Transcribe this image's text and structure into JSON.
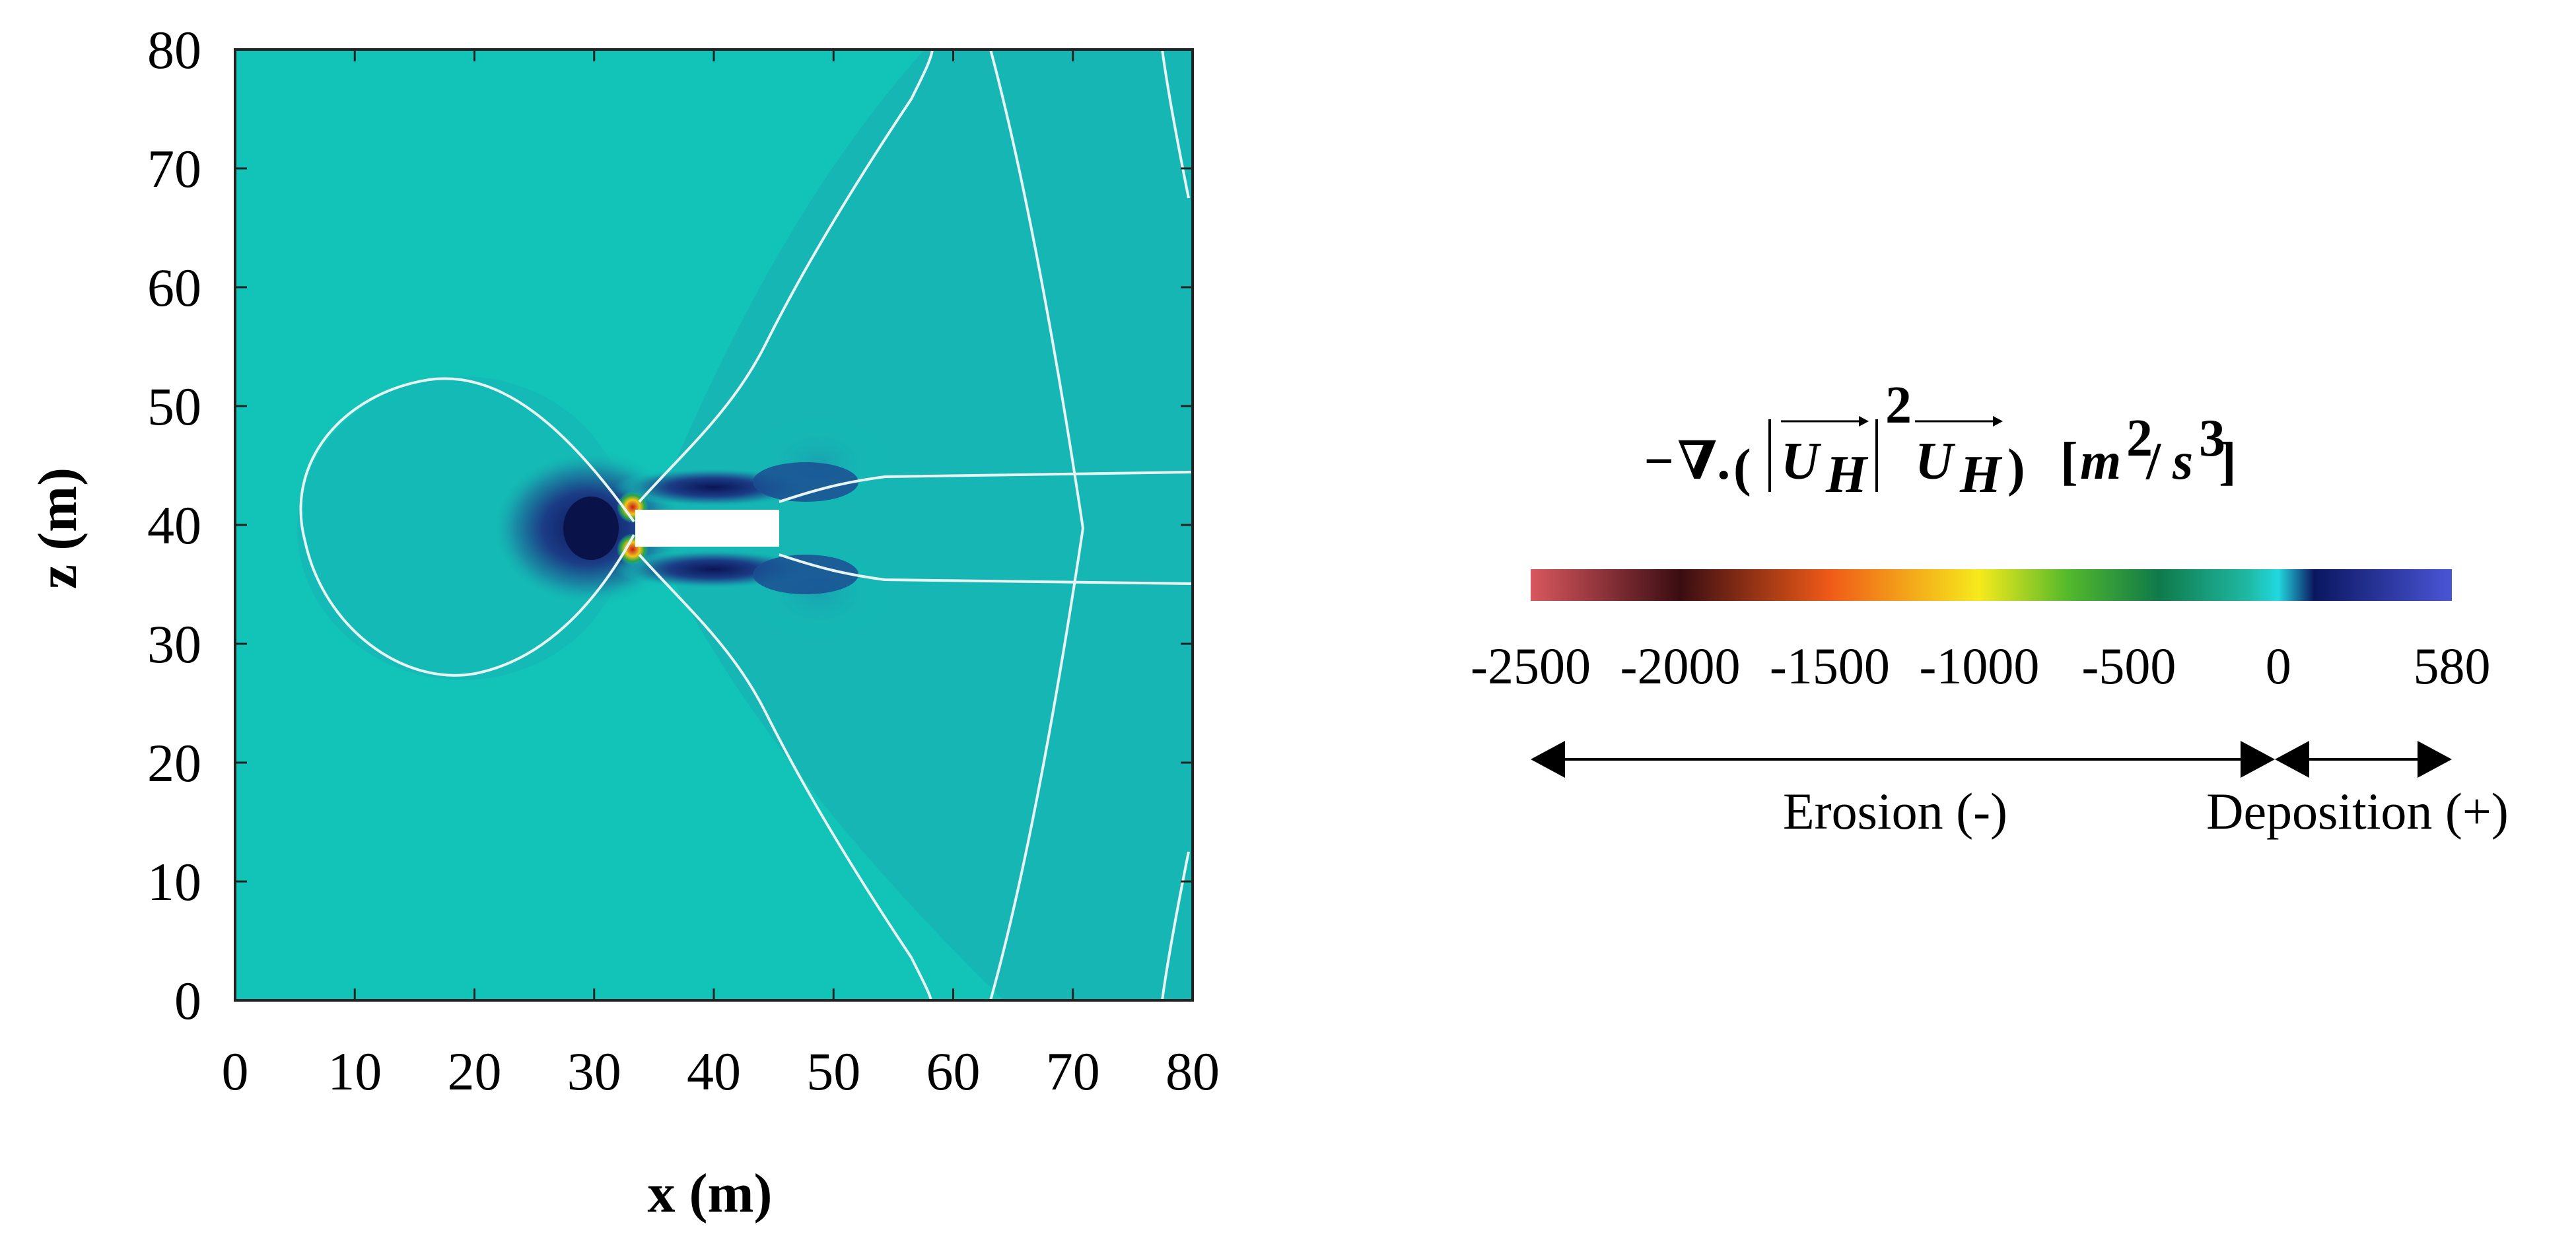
{
  "chart_data": {
    "type": "heatmap",
    "title": "",
    "xlabel": "x (m)",
    "ylabel": "z (m)",
    "xlim": [
      0,
      80
    ],
    "ylim": [
      0,
      80
    ],
    "x_ticks": [
      0,
      10,
      20,
      30,
      40,
      50,
      60,
      70,
      80
    ],
    "y_ticks": [
      0,
      10,
      20,
      30,
      40,
      50,
      60,
      70,
      80
    ],
    "obstacle": {
      "x": [
        34,
        46
      ],
      "z": [
        38.5,
        41.5
      ]
    },
    "colorbar": {
      "title": "−∇. (|U_H|² U_H) [m²/s³]",
      "ticks": [
        -2500,
        -2000,
        -1500,
        -1000,
        -500,
        0,
        580
      ],
      "tick_labels": [
        "-2500",
        "-2000",
        "-1500",
        "-1000",
        "-500",
        "0",
        "580"
      ],
      "range": [
        -2500,
        580
      ],
      "colormap": [
        {
          "value": -2500,
          "color": "#d9575e"
        },
        {
          "value": -2000,
          "color": "#3a0d12"
        },
        {
          "value": -1500,
          "color": "#f05a18"
        },
        {
          "value": -1000,
          "color": "#f6ea1c"
        },
        {
          "value": -700,
          "color": "#52b82c"
        },
        {
          "value": -400,
          "color": "#0f7a4a"
        },
        {
          "value": -100,
          "color": "#1fb9a4"
        },
        {
          "value": 0,
          "color": "#22d8e0"
        },
        {
          "value": 120,
          "color": "#0a1760"
        },
        {
          "value": 580,
          "color": "#4a55d6"
        }
      ]
    },
    "annotations": [
      {
        "text": "Erosion (-)",
        "range": [
          -2500,
          0
        ]
      },
      {
        "text": "Deposition (+)",
        "range": [
          0,
          580
        ]
      }
    ],
    "background_color": "#12c3b7"
  }
}
